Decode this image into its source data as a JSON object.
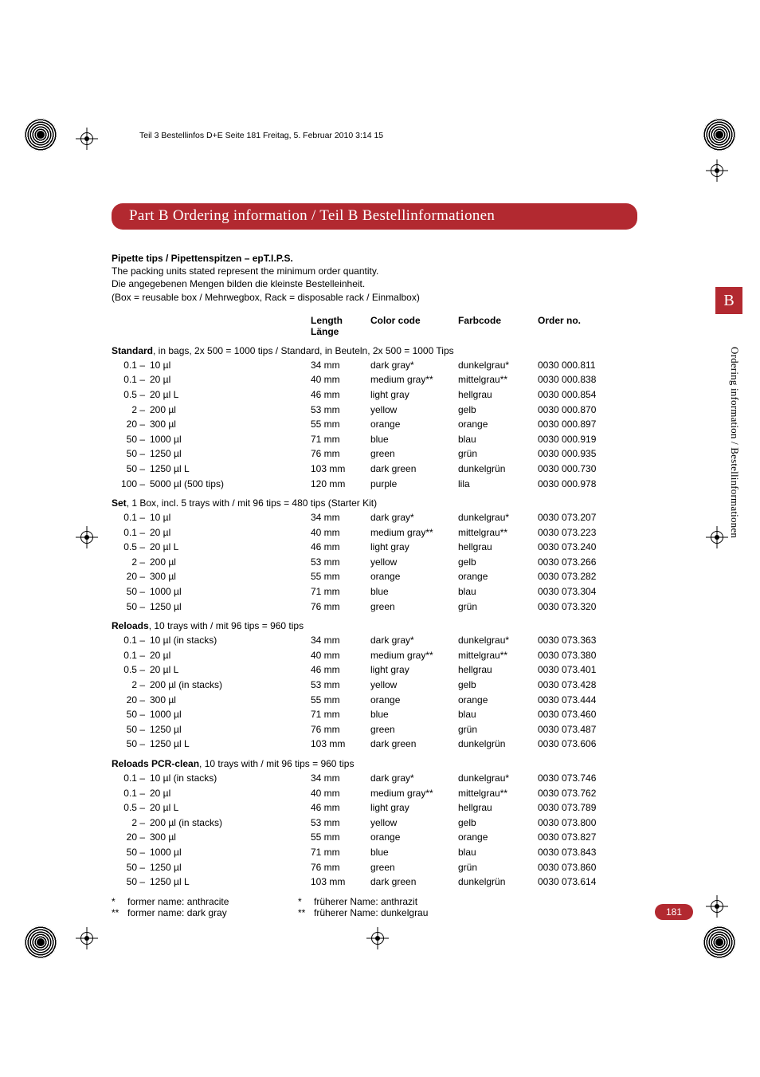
{
  "slug": "Teil 3 Bestellinfos D+E  Seite 181  Freitag, 5. Februar 2010  3:14 15",
  "title": "Part B   Ordering information / Teil B   Bestellinformationen",
  "intro": {
    "heading": "Pipette tips / Pipettenspitzen  –  epT.I.P.S.",
    "line1": "The packing units stated represent the minimum order quantity.",
    "line2": "Die angegebenen Mengen bilden die kleinste Bestelleinheit.",
    "line3": "(Box = reusable box / Mehrwegbox, Rack = disposable rack / Einmalbox)"
  },
  "columns": {
    "length_en": "Length",
    "length_de": "Länge",
    "color": "Color code",
    "farb": "Farbcode",
    "order": "Order no."
  },
  "sections": [
    {
      "label_bold": "Standard",
      "label_rest": ", in bags, 2x 500 = 1000 tips / Standard, in Beuteln, 2x 500 = 1000 Tips",
      "rows": [
        {
          "rng": "0.1 –",
          "vol": "10 µl",
          "len": "34 mm",
          "color": "dark gray*",
          "farb": "dunkelgrau*",
          "order": "0030 000.811"
        },
        {
          "rng": "0.1 –",
          "vol": "20 µl",
          "len": "40 mm",
          "color": "medium gray**",
          "farb": "mittelgrau**",
          "order": "0030 000.838"
        },
        {
          "rng": "0.5 –",
          "vol": "20 µl L",
          "len": "46 mm",
          "color": "light gray",
          "farb": "hellgrau",
          "order": "0030 000.854"
        },
        {
          "rng": "2 –",
          "vol": "200 µl",
          "len": "53 mm",
          "color": "yellow",
          "farb": "gelb",
          "order": "0030 000.870"
        },
        {
          "rng": "20 –",
          "vol": "300 µl",
          "len": "55 mm",
          "color": "orange",
          "farb": "orange",
          "order": "0030 000.897"
        },
        {
          "rng": "50 –",
          "vol": "1000 µl",
          "len": "71 mm",
          "color": "blue",
          "farb": "blau",
          "order": "0030 000.919"
        },
        {
          "rng": "50 –",
          "vol": "1250 µl",
          "len": "76 mm",
          "color": "green",
          "farb": "grün",
          "order": "0030 000.935"
        },
        {
          "rng": "50 –",
          "vol": "1250 µl L",
          "len": "103 mm",
          "color": "dark green",
          "farb": "dunkelgrün",
          "order": "0030 000.730"
        },
        {
          "rng": "100 –",
          "vol": "5000 µl (500 tips)",
          "len": "120 mm",
          "color": "purple",
          "farb": "lila",
          "order": "0030 000.978"
        }
      ]
    },
    {
      "label_bold": "Set",
      "label_rest": ", 1 Box, incl. 5 trays with / mit 96 tips = 480 tips (Starter Kit)",
      "rows": [
        {
          "rng": "0.1 –",
          "vol": "10 µl",
          "len": "34 mm",
          "color": "dark gray*",
          "farb": "dunkelgrau*",
          "order": "0030 073.207"
        },
        {
          "rng": "0.1 –",
          "vol": "20 µl",
          "len": "40 mm",
          "color": "medium gray**",
          "farb": "mittelgrau**",
          "order": "0030 073.223"
        },
        {
          "rng": "0.5 –",
          "vol": "20 µl L",
          "len": "46 mm",
          "color": "light gray",
          "farb": "hellgrau",
          "order": "0030 073.240"
        },
        {
          "rng": "2 –",
          "vol": "200 µl",
          "len": "53 mm",
          "color": "yellow",
          "farb": "gelb",
          "order": "0030 073.266"
        },
        {
          "rng": "20 –",
          "vol": "300 µl",
          "len": "55 mm",
          "color": "orange",
          "farb": "orange",
          "order": "0030 073.282"
        },
        {
          "rng": "50 –",
          "vol": "1000 µl",
          "len": "71 mm",
          "color": "blue",
          "farb": "blau",
          "order": "0030 073.304"
        },
        {
          "rng": "50 –",
          "vol": "1250 µl",
          "len": "76 mm",
          "color": "green",
          "farb": "grün",
          "order": "0030 073.320"
        }
      ]
    },
    {
      "label_bold": "Reloads",
      "label_rest": ", 10 trays with / mit 96 tips = 960 tips",
      "rows": [
        {
          "rng": "0.1 –",
          "vol": "10 µl (in stacks)",
          "len": "34 mm",
          "color": "dark gray*",
          "farb": "dunkelgrau*",
          "order": "0030 073.363"
        },
        {
          "rng": "0.1 –",
          "vol": "20 µl",
          "len": "40 mm",
          "color": "medium gray**",
          "farb": "mittelgrau**",
          "order": "0030 073.380"
        },
        {
          "rng": "0.5 –",
          "vol": "20 µl L",
          "len": "46 mm",
          "color": "light gray",
          "farb": "hellgrau",
          "order": "0030 073.401"
        },
        {
          "rng": "2 –",
          "vol": "200 µl (in stacks)",
          "len": "53 mm",
          "color": "yellow",
          "farb": "gelb",
          "order": "0030 073.428"
        },
        {
          "rng": "20 –",
          "vol": "300 µl",
          "len": "55 mm",
          "color": "orange",
          "farb": "orange",
          "order": "0030 073.444"
        },
        {
          "rng": "50 –",
          "vol": "1000 µl",
          "len": "71 mm",
          "color": "blue",
          "farb": "blau",
          "order": "0030 073.460"
        },
        {
          "rng": "50 –",
          "vol": "1250 µl",
          "len": "76 mm",
          "color": "green",
          "farb": "grün",
          "order": "0030 073.487"
        },
        {
          "rng": "50 –",
          "vol": "1250 µl L",
          "len": "103 mm",
          "color": "dark green",
          "farb": "dunkelgrün",
          "order": "0030 073.606"
        }
      ]
    },
    {
      "label_bold": "Reloads PCR-clean",
      "label_rest": ", 10 trays with / mit 96 tips = 960 tips",
      "rows": [
        {
          "rng": "0.1 –",
          "vol": "10 µl (in stacks)",
          "len": "34 mm",
          "color": "dark gray*",
          "farb": "dunkelgrau*",
          "order": "0030 073.746"
        },
        {
          "rng": "0.1 –",
          "vol": "20 µl",
          "len": "40 mm",
          "color": "medium gray**",
          "farb": "mittelgrau**",
          "order": "0030 073.762"
        },
        {
          "rng": "0.5 –",
          "vol": "20 µl L",
          "len": "46 mm",
          "color": "light gray",
          "farb": "hellgrau",
          "order": "0030 073.789"
        },
        {
          "rng": "2 –",
          "vol": "200 µl (in stacks)",
          "len": "53 mm",
          "color": "yellow",
          "farb": "gelb",
          "order": "0030 073.800"
        },
        {
          "rng": "20 –",
          "vol": "300 µl",
          "len": "55 mm",
          "color": "orange",
          "farb": "orange",
          "order": "0030 073.827"
        },
        {
          "rng": "50 –",
          "vol": "1000 µl",
          "len": "71 mm",
          "color": "blue",
          "farb": "blau",
          "order": "0030 073.843"
        },
        {
          "rng": "50 –",
          "vol": "1250 µl",
          "len": "76 mm",
          "color": "green",
          "farb": "grün",
          "order": "0030 073.860"
        },
        {
          "rng": "50 –",
          "vol": "1250 µl L",
          "len": "103 mm",
          "color": "dark green",
          "farb": "dunkelgrün",
          "order": "0030 073.614"
        }
      ]
    }
  ],
  "footnotes": {
    "fn1_en": "former name: anthracite",
    "fn2_en": "former name: dark gray",
    "fn1_de": "früherer Name: anthrazit",
    "fn2_de": "früherer Name: dunkelgrau"
  },
  "page_number": "181",
  "side_tab": "B",
  "side_text": "Ordering information / Bestellinformationen",
  "colors": {
    "brand": "#b22930",
    "text": "#000000",
    "bg": "#ffffff"
  }
}
